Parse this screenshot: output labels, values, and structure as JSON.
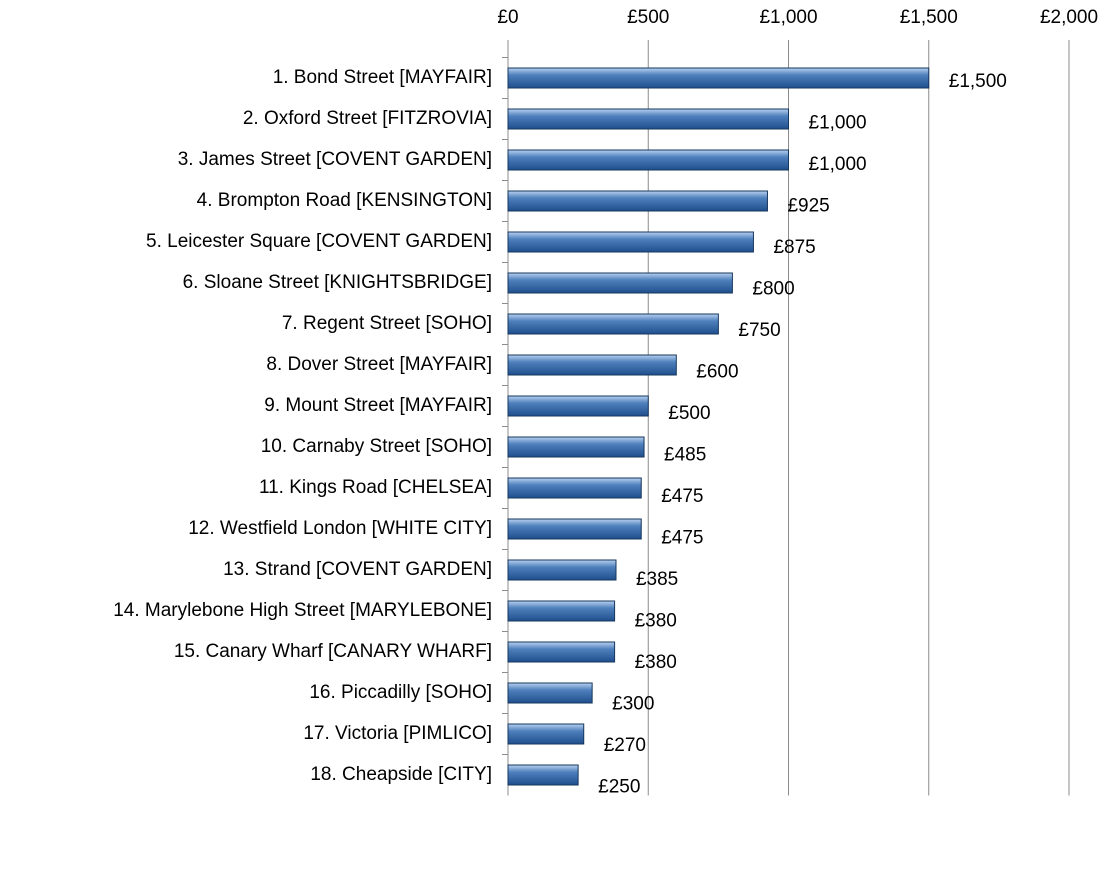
{
  "chart_data": {
    "type": "barh",
    "categories": [
      "1. Bond Street [MAYFAIR]",
      "2. Oxford Street [FITZROVIA]",
      "3. James Street [COVENT GARDEN]",
      "4. Brompton Road [KENSINGTON]",
      "5. Leicester Square [COVENT GARDEN]",
      "6. Sloane Street [KNIGHTSBRIDGE]",
      "7. Regent Street [SOHO]",
      "8. Dover Street [MAYFAIR]",
      "9. Mount Street [MAYFAIR]",
      "10. Carnaby Street [SOHO]",
      "11. Kings Road [CHELSEA]",
      "12. Westfield London [WHITE CITY]",
      "13. Strand [COVENT GARDEN]",
      "14. Marylebone High Street [MARYLEBONE]",
      "15. Canary Wharf [CANARY WHARF]",
      "16. Piccadilly [SOHO]",
      "17. Victoria [PIMLICO]",
      "18. Cheapside [CITY]"
    ],
    "values": [
      1500,
      1000,
      1000,
      925,
      875,
      800,
      750,
      600,
      500,
      485,
      475,
      475,
      385,
      380,
      380,
      300,
      270,
      250
    ],
    "value_labels": [
      "£1,500",
      "£1,000",
      "£1,000",
      "£925",
      "£875",
      "£800",
      "£750",
      "£600",
      "£500",
      "£485",
      "£475",
      "£475",
      "£385",
      "£380",
      "£380",
      "£300",
      "£270",
      "£250"
    ],
    "color": "#4f81bd",
    "xlim": [
      0,
      2000
    ],
    "xticks": [
      {
        "value": 0,
        "label": "£0"
      },
      {
        "value": 500,
        "label": "£500"
      },
      {
        "value": 1000,
        "label": "£1,000"
      },
      {
        "value": 1500,
        "label": "£1,500"
      },
      {
        "value": 2000,
        "label": "£2,000"
      }
    ],
    "grid": true
  }
}
